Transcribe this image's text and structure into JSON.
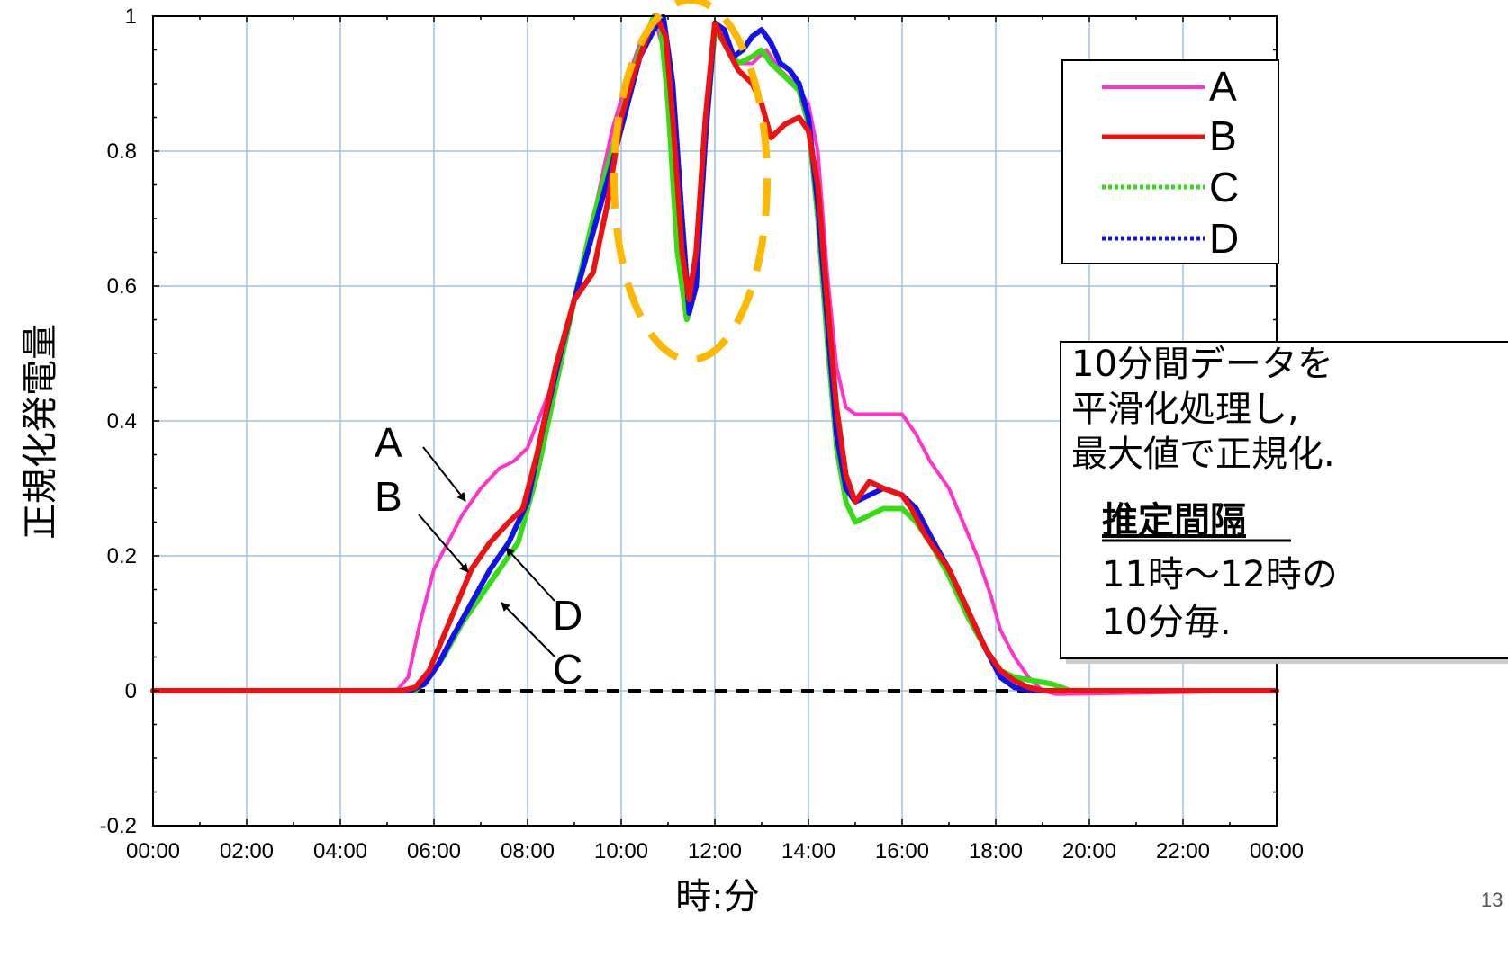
{
  "chart_data": {
    "type": "line",
    "title": "",
    "xlabel": "時:分",
    "ylabel": "正規化発電量",
    "xlim": [
      0,
      24
    ],
    "ylim": [
      -0.2,
      1
    ],
    "x_ticks": [
      0,
      2,
      4,
      6,
      8,
      10,
      12,
      14,
      16,
      18,
      20,
      22,
      24
    ],
    "x_tick_labels": [
      "00:00",
      "02:00",
      "04:00",
      "06:00",
      "08:00",
      "10:00",
      "12:00",
      "14:00",
      "16:00",
      "18:00",
      "20:00",
      "22:00",
      "00:00"
    ],
    "y_ticks": [
      -0.2,
      0,
      0.2,
      0.4,
      0.6,
      0.8,
      1
    ],
    "y_tick_labels": [
      "-0.2",
      "0",
      "0.2",
      "0.4",
      "0.6",
      "0.8",
      "1"
    ],
    "grid": true,
    "legend_position": "top-right",
    "x_units": "hours",
    "series": [
      {
        "name": "A",
        "color": "#ff33cc",
        "style": "solid",
        "x": [
          0,
          5.2,
          5.45,
          5.7,
          6.0,
          6.3,
          6.6,
          7.0,
          7.4,
          7.7,
          8.0,
          8.5,
          9.0,
          9.4,
          9.8,
          10.1,
          10.4,
          10.7,
          10.9,
          11.1,
          11.3,
          11.45,
          11.6,
          11.8,
          12.0,
          12.2,
          12.5,
          12.8,
          13.1,
          13.4,
          13.7,
          14.0,
          14.2,
          14.4,
          14.6,
          14.8,
          15.0,
          15.3,
          15.6,
          16.0,
          16.3,
          16.6,
          17.0,
          17.3,
          17.6,
          17.9,
          18.1,
          18.4,
          18.7,
          19.0,
          19.3,
          24
        ],
        "y": [
          0,
          0,
          0.02,
          0.1,
          0.18,
          0.22,
          0.26,
          0.3,
          0.33,
          0.34,
          0.36,
          0.45,
          0.58,
          0.7,
          0.83,
          0.9,
          0.96,
          1.0,
          0.95,
          0.8,
          0.65,
          0.6,
          0.65,
          0.85,
          0.98,
          0.96,
          0.93,
          0.93,
          0.95,
          0.92,
          0.9,
          0.87,
          0.8,
          0.62,
          0.48,
          0.42,
          0.41,
          0.41,
          0.41,
          0.41,
          0.38,
          0.34,
          0.3,
          0.25,
          0.2,
          0.14,
          0.09,
          0.05,
          0.02,
          0.0,
          -0.005,
          0
        ]
      },
      {
        "name": "B",
        "color": "#ee1111",
        "style": "solid",
        "x": [
          0,
          5.3,
          5.6,
          5.9,
          6.2,
          6.5,
          6.8,
          7.2,
          7.6,
          7.9,
          8.2,
          8.6,
          9.0,
          9.4,
          9.7,
          10.0,
          10.3,
          10.6,
          10.75,
          10.95,
          11.1,
          11.3,
          11.45,
          11.6,
          11.8,
          12.0,
          12.2,
          12.5,
          12.8,
          13.0,
          13.2,
          13.5,
          13.8,
          14.0,
          14.2,
          14.4,
          14.6,
          14.8,
          15.0,
          15.3,
          15.6,
          16.0,
          16.2,
          16.5,
          17.0,
          17.4,
          17.8,
          18.1,
          18.4,
          18.7,
          19.0,
          24
        ],
        "y": [
          0,
          0,
          0.005,
          0.03,
          0.08,
          0.13,
          0.18,
          0.22,
          0.25,
          0.27,
          0.35,
          0.48,
          0.58,
          0.62,
          0.72,
          0.85,
          0.92,
          0.98,
          1.0,
          0.97,
          0.85,
          0.65,
          0.58,
          0.65,
          0.85,
          0.99,
          0.96,
          0.92,
          0.9,
          0.87,
          0.82,
          0.84,
          0.85,
          0.83,
          0.75,
          0.58,
          0.42,
          0.32,
          0.28,
          0.31,
          0.3,
          0.29,
          0.27,
          0.23,
          0.18,
          0.12,
          0.06,
          0.03,
          0.015,
          0.005,
          0.0,
          0
        ]
      },
      {
        "name": "C",
        "color": "#33dd11",
        "style": "dotted",
        "x": [
          0,
          5.6,
          5.9,
          6.2,
          6.6,
          7.0,
          7.4,
          7.8,
          8.2,
          8.6,
          9.0,
          9.4,
          9.8,
          10.1,
          10.4,
          10.7,
          10.85,
          11.0,
          11.2,
          11.4,
          11.6,
          11.8,
          12.0,
          12.2,
          12.5,
          12.8,
          13.0,
          13.2,
          13.5,
          13.8,
          14.0,
          14.2,
          14.4,
          14.6,
          14.8,
          15.0,
          15.3,
          15.6,
          16.0,
          16.3,
          16.6,
          17.0,
          17.4,
          17.8,
          18.1,
          18.4,
          18.8,
          19.2,
          19.6,
          24
        ],
        "y": [
          0,
          0,
          0.02,
          0.05,
          0.1,
          0.14,
          0.18,
          0.22,
          0.32,
          0.45,
          0.58,
          0.7,
          0.8,
          0.88,
          0.95,
          1.0,
          0.98,
          0.87,
          0.65,
          0.55,
          0.6,
          0.82,
          0.98,
          0.96,
          0.93,
          0.94,
          0.95,
          0.93,
          0.91,
          0.89,
          0.84,
          0.7,
          0.52,
          0.36,
          0.28,
          0.25,
          0.26,
          0.27,
          0.27,
          0.25,
          0.22,
          0.17,
          0.11,
          0.06,
          0.03,
          0.02,
          0.015,
          0.01,
          0.0,
          0
        ]
      },
      {
        "name": "D",
        "color": "#1111ee",
        "style": "dotted",
        "x": [
          0,
          5.5,
          5.8,
          6.1,
          6.4,
          6.8,
          7.2,
          7.6,
          8.0,
          8.3,
          8.7,
          9.0,
          9.4,
          9.8,
          10.1,
          10.4,
          10.7,
          10.9,
          11.1,
          11.3,
          11.45,
          11.6,
          11.8,
          12.0,
          12.2,
          12.4,
          12.6,
          12.8,
          13.0,
          13.2,
          13.4,
          13.6,
          13.8,
          14.0,
          14.2,
          14.4,
          14.6,
          14.8,
          15.0,
          15.3,
          15.6,
          16.0,
          16.3,
          16.6,
          17.0,
          17.4,
          17.8,
          18.1,
          18.4,
          18.8,
          19.2,
          24
        ],
        "y": [
          0,
          0,
          0.01,
          0.04,
          0.08,
          0.13,
          0.18,
          0.22,
          0.28,
          0.38,
          0.5,
          0.58,
          0.68,
          0.78,
          0.86,
          0.94,
          0.98,
          1.0,
          0.9,
          0.7,
          0.56,
          0.6,
          0.82,
          0.99,
          0.98,
          0.94,
          0.95,
          0.97,
          0.98,
          0.96,
          0.93,
          0.92,
          0.9,
          0.85,
          0.72,
          0.55,
          0.38,
          0.3,
          0.28,
          0.29,
          0.3,
          0.29,
          0.27,
          0.23,
          0.18,
          0.12,
          0.06,
          0.02,
          0.005,
          0.0,
          0.0,
          0
        ]
      },
      {
        "name": "",
        "color": "#000000",
        "style": "dashed",
        "x": [
          0,
          24
        ],
        "y": [
          0,
          0
        ]
      }
    ],
    "annotations": {
      "arrow_labels": [
        "A",
        "B",
        "D",
        "C"
      ],
      "note": [
        "10分間データを",
        "平滑化処理し,",
        "最大値で正規化."
      ],
      "note_heading": "推定間隔",
      "note_body": [
        "11時～12時の",
        "10分毎."
      ]
    }
  },
  "page": {
    "number": "13"
  },
  "colors": {
    "grid": "#9cc3e6",
    "highlight_ellipse": "#ffb800"
  }
}
